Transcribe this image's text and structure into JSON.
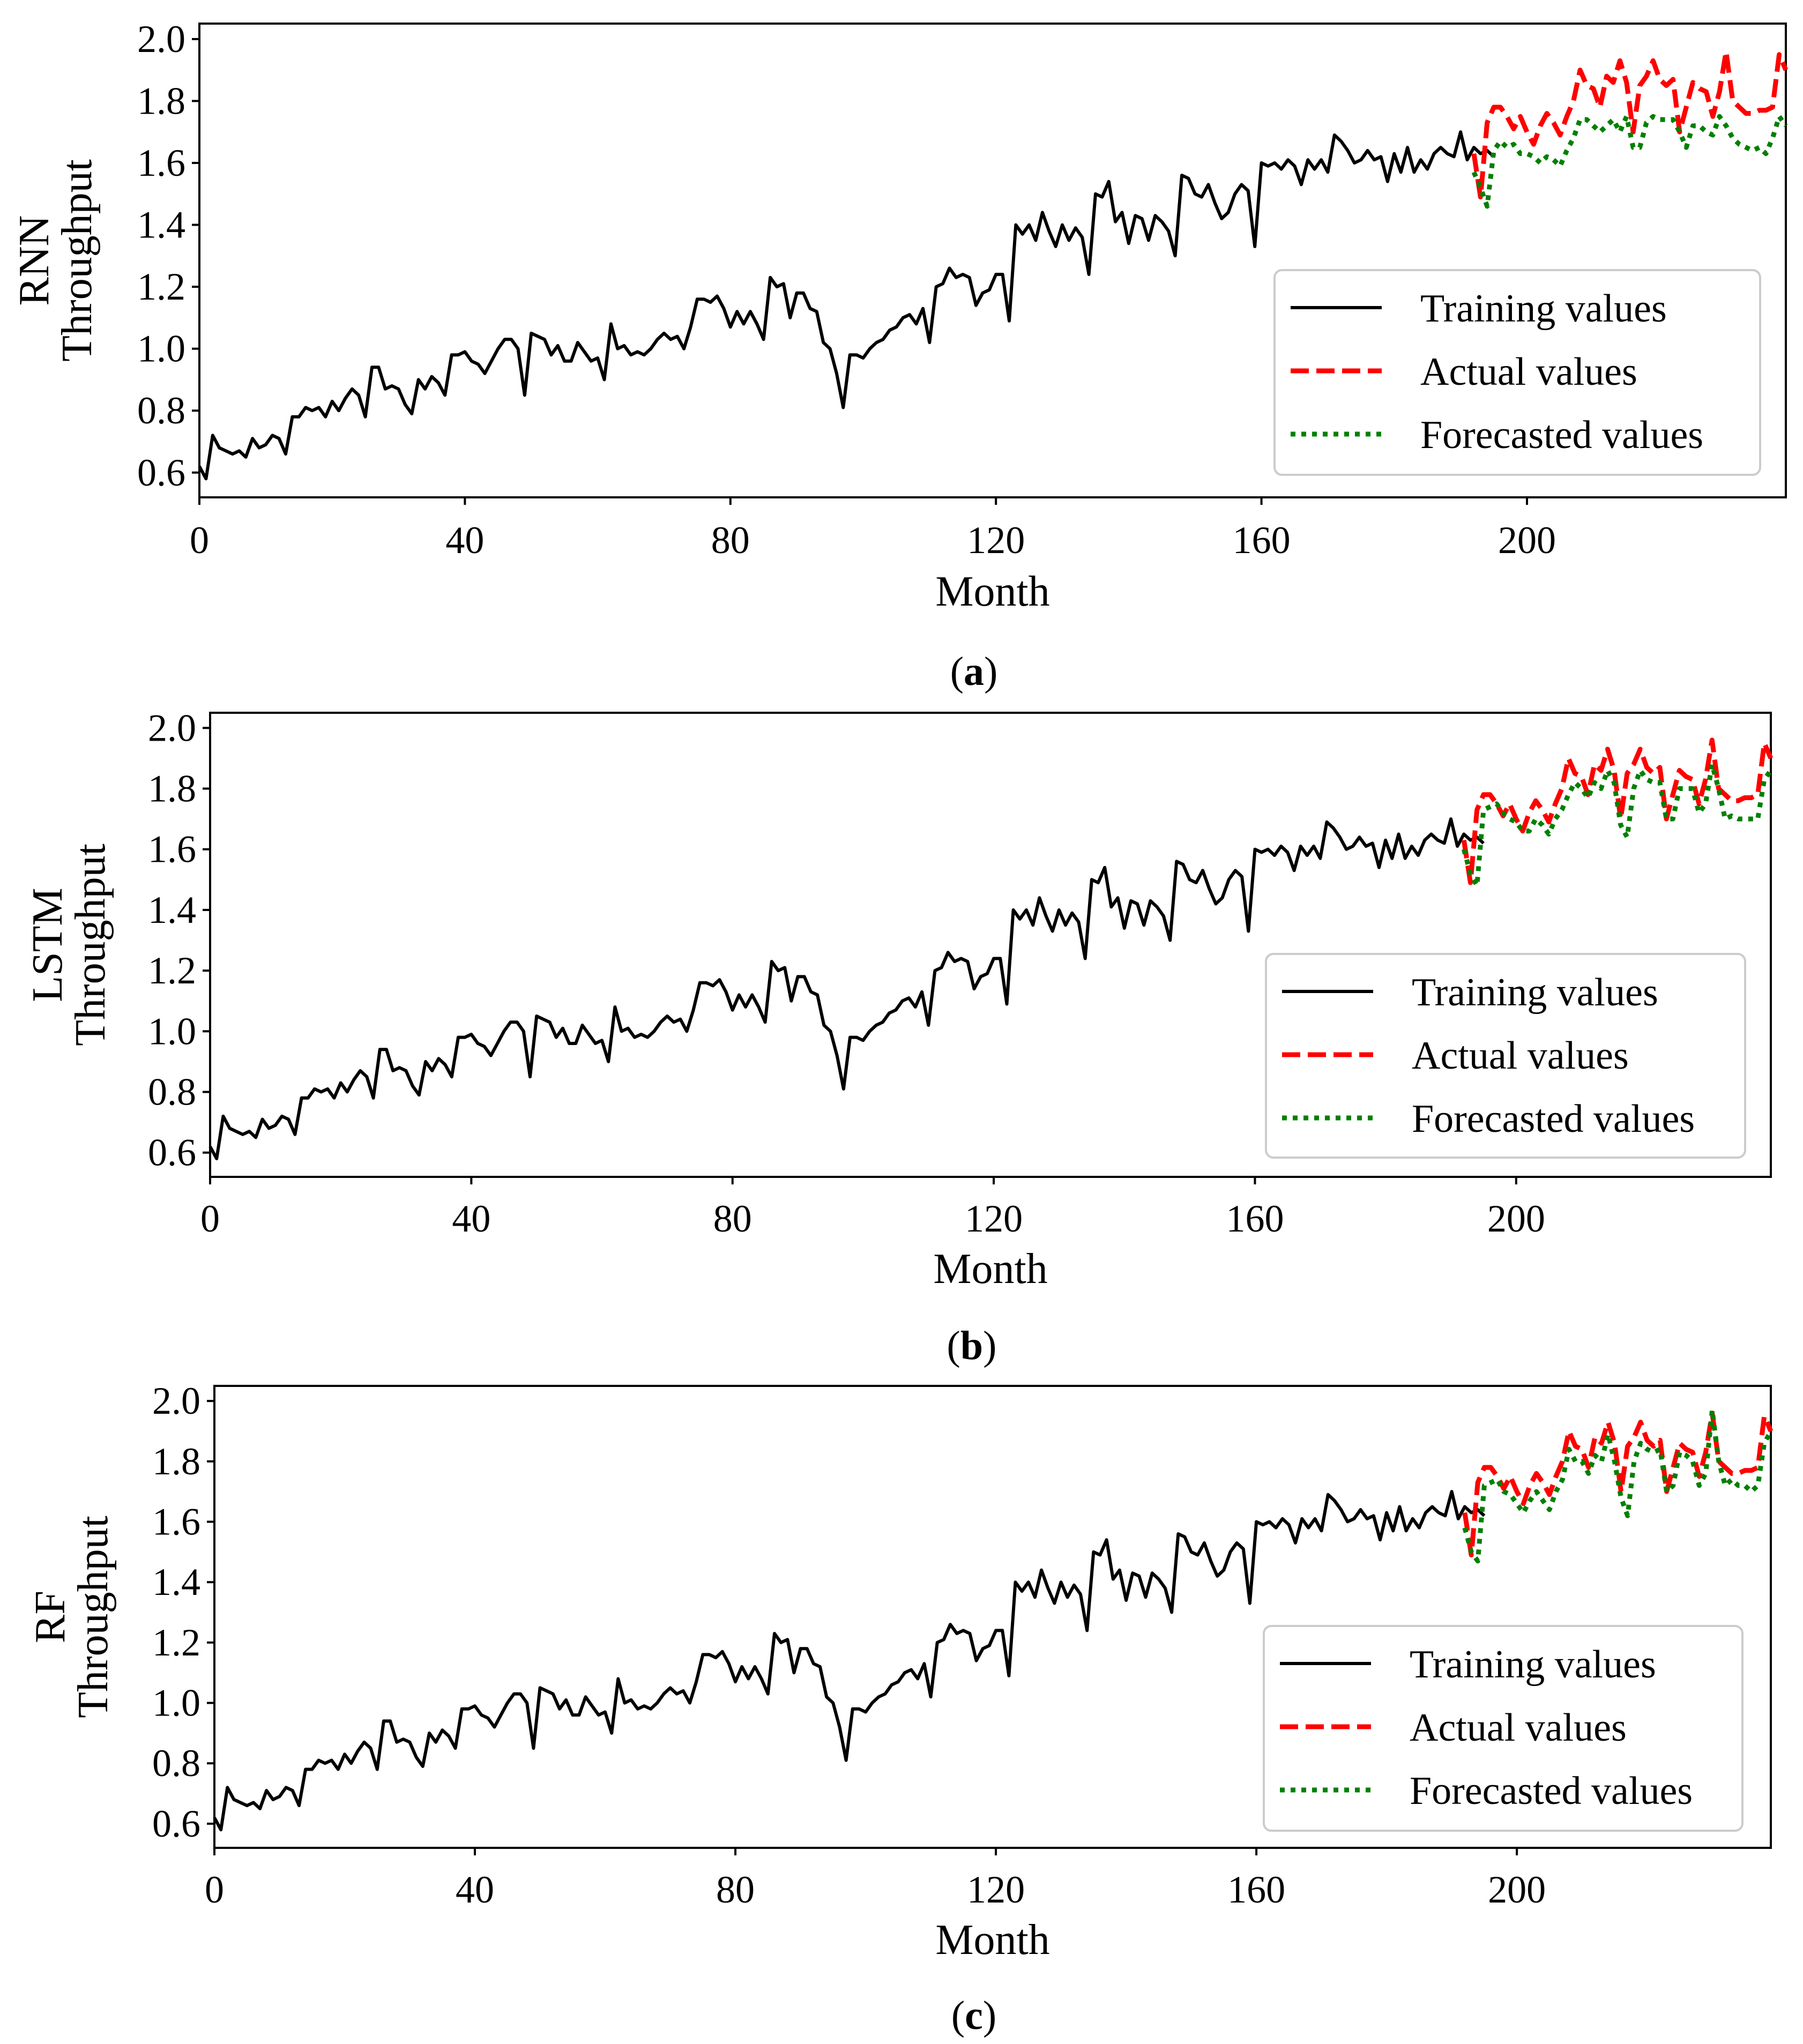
{
  "figure": {
    "panels": [
      {
        "id": "a",
        "caption_letter": "a",
        "ylabel_model": "RNN",
        "ylabel_metric": "Throughput",
        "xlabel": "Month",
        "legend": [
          "Training values",
          "Actual values",
          "Forecasted values"
        ]
      },
      {
        "id": "b",
        "caption_letter": "b",
        "ylabel_model": "LSTM",
        "ylabel_metric": "Throughput",
        "xlabel": "Month",
        "legend": [
          "Training values",
          "Actual values",
          "Forecasted values"
        ]
      },
      {
        "id": "c",
        "caption_letter": "c",
        "ylabel_model": "RF",
        "ylabel_metric": "Throughput",
        "xlabel": "Month",
        "legend": [
          "Training values",
          "Actual values",
          "Forecasted values"
        ]
      }
    ]
  },
  "colors": {
    "training": "#000000",
    "actual": "#ff0000",
    "forecast": "#008000"
  },
  "chart_data": {
    "type": "line",
    "xlim": [
      0,
      239
    ],
    "ylim": [
      0.52,
      2.05
    ],
    "xticks": [
      0,
      40,
      80,
      120,
      160,
      200
    ],
    "yticks": [
      0.6,
      0.8,
      1.0,
      1.2,
      1.4,
      1.6,
      1.8,
      2.0
    ],
    "ytick_labels": [
      "0.6",
      "0.8",
      "1.0",
      "1.2",
      "1.4",
      "1.6",
      "1.8",
      "2.0"
    ],
    "training": {
      "name": "Training values",
      "x_start": 0,
      "values": [
        0.62,
        0.58,
        0.72,
        0.68,
        0.67,
        0.66,
        0.67,
        0.65,
        0.71,
        0.68,
        0.69,
        0.72,
        0.71,
        0.66,
        0.78,
        0.78,
        0.81,
        0.8,
        0.81,
        0.78,
        0.83,
        0.8,
        0.84,
        0.87,
        0.85,
        0.78,
        0.94,
        0.94,
        0.87,
        0.88,
        0.87,
        0.82,
        0.79,
        0.9,
        0.87,
        0.91,
        0.89,
        0.85,
        0.98,
        0.98,
        0.99,
        0.96,
        0.95,
        0.92,
        0.96,
        1.0,
        1.03,
        1.03,
        1.0,
        0.85,
        1.05,
        1.04,
        1.03,
        0.98,
        1.01,
        0.96,
        0.96,
        1.02,
        0.99,
        0.96,
        0.97,
        0.9,
        1.08,
        1.0,
        1.01,
        0.98,
        0.99,
        0.98,
        1.0,
        1.03,
        1.05,
        1.03,
        1.04,
        1.0,
        1.07,
        1.16,
        1.16,
        1.15,
        1.17,
        1.13,
        1.07,
        1.12,
        1.08,
        1.12,
        1.08,
        1.03,
        1.23,
        1.2,
        1.21,
        1.1,
        1.18,
        1.18,
        1.13,
        1.12,
        1.02,
        1.0,
        0.92,
        0.81,
        0.98,
        0.98,
        0.97,
        1.0,
        1.02,
        1.03,
        1.06,
        1.07,
        1.1,
        1.11,
        1.08,
        1.13,
        1.02,
        1.2,
        1.21,
        1.26,
        1.23,
        1.24,
        1.23,
        1.14,
        1.18,
        1.19,
        1.24,
        1.24,
        1.09,
        1.4,
        1.37,
        1.4,
        1.35,
        1.44,
        1.38,
        1.33,
        1.4,
        1.35,
        1.39,
        1.36,
        1.24,
        1.5,
        1.49,
        1.54,
        1.41,
        1.44,
        1.34,
        1.43,
        1.42,
        1.35,
        1.43,
        1.41,
        1.38,
        1.3,
        1.56,
        1.55,
        1.5,
        1.49,
        1.53,
        1.47,
        1.42,
        1.44,
        1.5,
        1.53,
        1.51,
        1.33,
        1.6,
        1.59,
        1.6,
        1.58,
        1.61,
        1.59,
        1.53,
        1.61,
        1.58,
        1.61,
        1.57,
        1.69,
        1.67,
        1.64,
        1.6,
        1.61,
        1.64,
        1.61,
        1.62,
        1.54,
        1.63,
        1.57,
        1.65,
        1.57,
        1.61,
        1.58,
        1.63,
        1.65,
        1.63,
        1.62,
        1.7,
        1.61,
        1.65,
        1.63,
        1.64,
        1.62
      ]
    },
    "actual": {
      "name": "Actual values",
      "x_start": 192,
      "values": [
        1.63,
        1.49,
        1.73,
        1.78,
        1.78,
        1.75,
        1.71,
        1.75,
        1.7,
        1.66,
        1.72,
        1.76,
        1.73,
        1.69,
        1.75,
        1.8,
        1.9,
        1.85,
        1.84,
        1.78,
        1.88,
        1.86,
        1.93,
        1.86,
        1.7,
        1.85,
        1.88,
        1.93,
        1.87,
        1.85,
        1.87,
        1.7,
        1.78,
        1.86,
        1.84,
        1.83,
        1.75,
        1.83,
        1.96,
        1.8,
        1.78,
        1.76,
        1.76,
        1.77,
        1.77,
        1.78,
        1.95,
        1.9
      ]
    },
    "forecast_rnn": {
      "name": "Forecasted values",
      "x_start": 192,
      "values": [
        1.57,
        1.52,
        1.46,
        1.64,
        1.67,
        1.65,
        1.66,
        1.63,
        1.63,
        1.62,
        1.6,
        1.62,
        1.61,
        1.59,
        1.64,
        1.68,
        1.74,
        1.74,
        1.72,
        1.7,
        1.72,
        1.74,
        1.7,
        1.75,
        1.65,
        1.65,
        1.73,
        1.75,
        1.74,
        1.74,
        1.74,
        1.7,
        1.65,
        1.72,
        1.72,
        1.7,
        1.69,
        1.75,
        1.72,
        1.68,
        1.66,
        1.65,
        1.64,
        1.65,
        1.63,
        1.68,
        1.75,
        1.72
      ]
    },
    "forecast_lstm": {
      "name": "Forecasted values",
      "x_start": 192,
      "values": [
        1.6,
        1.52,
        1.48,
        1.73,
        1.74,
        1.75,
        1.72,
        1.7,
        1.69,
        1.66,
        1.66,
        1.7,
        1.68,
        1.65,
        1.7,
        1.73,
        1.78,
        1.82,
        1.8,
        1.77,
        1.82,
        1.8,
        1.86,
        1.82,
        1.68,
        1.64,
        1.8,
        1.86,
        1.83,
        1.82,
        1.82,
        1.7,
        1.7,
        1.8,
        1.8,
        1.8,
        1.72,
        1.75,
        1.88,
        1.8,
        1.7,
        1.71,
        1.7,
        1.7,
        1.7,
        1.7,
        1.83,
        1.86
      ]
    },
    "forecast_rf": {
      "name": "Forecasted values",
      "x_start": 192,
      "values": [
        1.58,
        1.5,
        1.47,
        1.72,
        1.73,
        1.74,
        1.7,
        1.69,
        1.66,
        1.63,
        1.67,
        1.7,
        1.67,
        1.64,
        1.7,
        1.74,
        1.84,
        1.8,
        1.8,
        1.76,
        1.82,
        1.8,
        1.89,
        1.8,
        1.68,
        1.62,
        1.8,
        1.86,
        1.84,
        1.83,
        1.84,
        1.7,
        1.72,
        1.83,
        1.82,
        1.8,
        1.72,
        1.76,
        1.97,
        1.8,
        1.72,
        1.74,
        1.72,
        1.72,
        1.7,
        1.72,
        1.86,
        1.9
      ]
    }
  }
}
